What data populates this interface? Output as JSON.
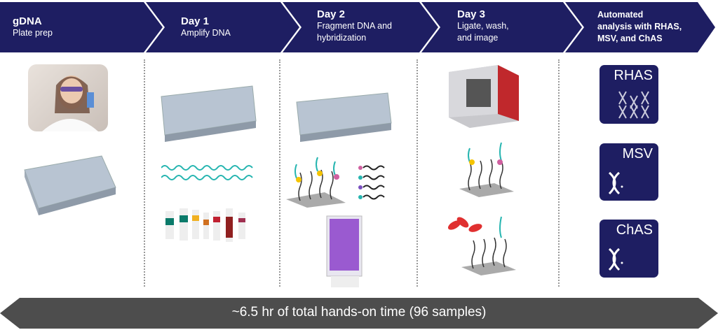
{
  "steps": [
    {
      "title": "gDNA",
      "subtitle": "Plate prep"
    },
    {
      "title": "Day 1",
      "subtitle": "Amplify DNA"
    },
    {
      "title": "Day 2",
      "subtitle1": "Fragment DNA and",
      "subtitle2": "hybridization"
    },
    {
      "title": "Day 3",
      "subtitle1": "Ligate, wash,",
      "subtitle2": "and image"
    },
    {
      "line1": "Automated",
      "line2": "analysis with RHAS,",
      "line3": "MSV, and ChAS"
    }
  ],
  "tools": [
    {
      "name": "RHAS",
      "icon": "dna-multi-icon"
    },
    {
      "name": "MSV",
      "icon": "dna-icon"
    },
    {
      "name": "ChAS",
      "icon": "dna-icon"
    }
  ],
  "footer": {
    "text": "~6.5 hr of total hands-on time (96 samples)"
  },
  "colors": {
    "navy": "#1e1e62",
    "footer": "#4d4d4d"
  }
}
